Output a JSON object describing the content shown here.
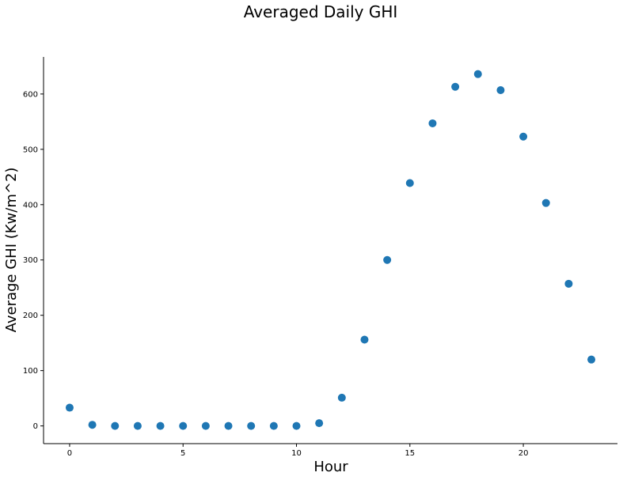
{
  "chart_data": {
    "type": "scatter",
    "title": "Averaged Daily GHI",
    "xlabel": "Hour",
    "ylabel": "Average GHI (Kw/m^2)",
    "xlim": [
      -1.15,
      24.15
    ],
    "ylim": [
      -32,
      667
    ],
    "xticks": [
      0,
      5,
      10,
      15,
      20
    ],
    "yticks": [
      0,
      100,
      200,
      300,
      400,
      500,
      600
    ],
    "grid": false,
    "color": "#1f77b4",
    "series": [
      {
        "x": [
          0,
          1,
          2,
          3,
          4,
          5,
          6,
          7,
          8,
          9,
          10,
          11,
          12,
          13,
          14,
          15,
          16,
          17,
          18,
          19,
          20,
          21,
          22,
          23
        ],
        "y": [
          33,
          2,
          0,
          0,
          0,
          0,
          0,
          0,
          0,
          0,
          0,
          5,
          51,
          156,
          300,
          439,
          547,
          613,
          636,
          607,
          523,
          403,
          257,
          120
        ]
      }
    ]
  }
}
